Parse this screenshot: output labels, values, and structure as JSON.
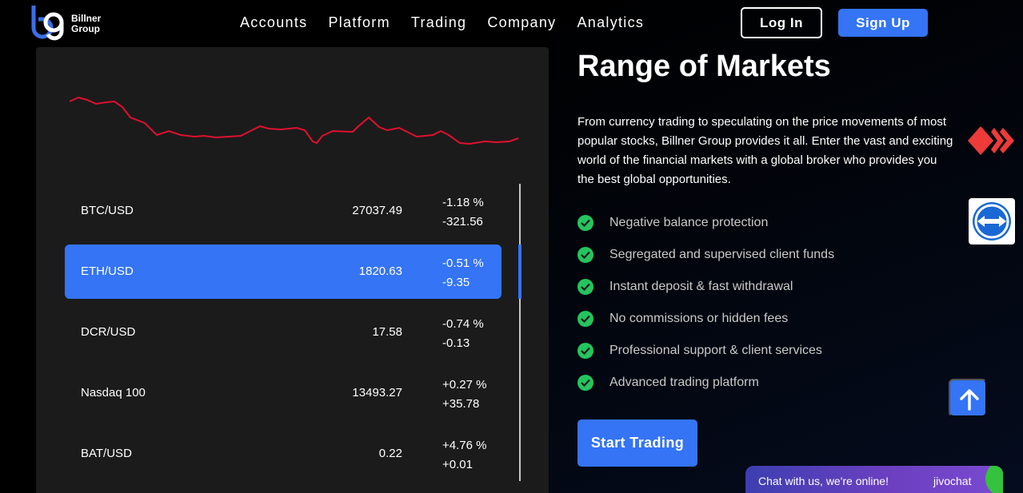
{
  "header": {
    "logo_line1": "Billner",
    "logo_line2": "Group",
    "nav": [
      "Accounts",
      "Platform",
      "Trading",
      "Company",
      "Analytics"
    ],
    "login_label": "Log In",
    "signup_label": "Sign Up"
  },
  "markets": {
    "rows": [
      {
        "symbol": "BTC/USD",
        "price": "27037.49",
        "change_pct": "-1.18 %",
        "change_abs": "-321.56",
        "active": false
      },
      {
        "symbol": "ETH/USD",
        "price": "1820.63",
        "change_pct": "-0.51 %",
        "change_abs": "-9.35",
        "active": true
      },
      {
        "symbol": "DCR/USD",
        "price": "17.58",
        "change_pct": "-0.74 %",
        "change_abs": "-0.13",
        "active": false
      },
      {
        "symbol": "Nasdaq 100",
        "price": "13493.27",
        "change_pct": "+0.27 %",
        "change_abs": "+35.78",
        "active": false
      },
      {
        "symbol": "BAT/USD",
        "price": "0.22",
        "change_pct": "+4.76 %",
        "change_abs": "+0.01",
        "active": false
      }
    ],
    "sparkline_color": "#e0102f"
  },
  "content": {
    "title": "Range of Markets",
    "description": "From currency trading to speculating on the price movements of most popular stocks, Billner Group provides it all. Enter the vast and exciting world of the financial markets with a global broker who provides you the best global opportunities.",
    "features": [
      "Negative balance protection",
      "Segregated and supervised client funds",
      "Instant deposit & fast withdrawal",
      "No commissions or hidden fees",
      "Professional support & client services",
      "Advanced trading platform"
    ],
    "cta_label": "Start Trading"
  },
  "chat": {
    "message": "Chat with us, we're online!",
    "brand": "jivochat"
  },
  "colors": {
    "accent": "#3474f5",
    "check": "#25c45e",
    "panel": "#1b1b1b"
  }
}
